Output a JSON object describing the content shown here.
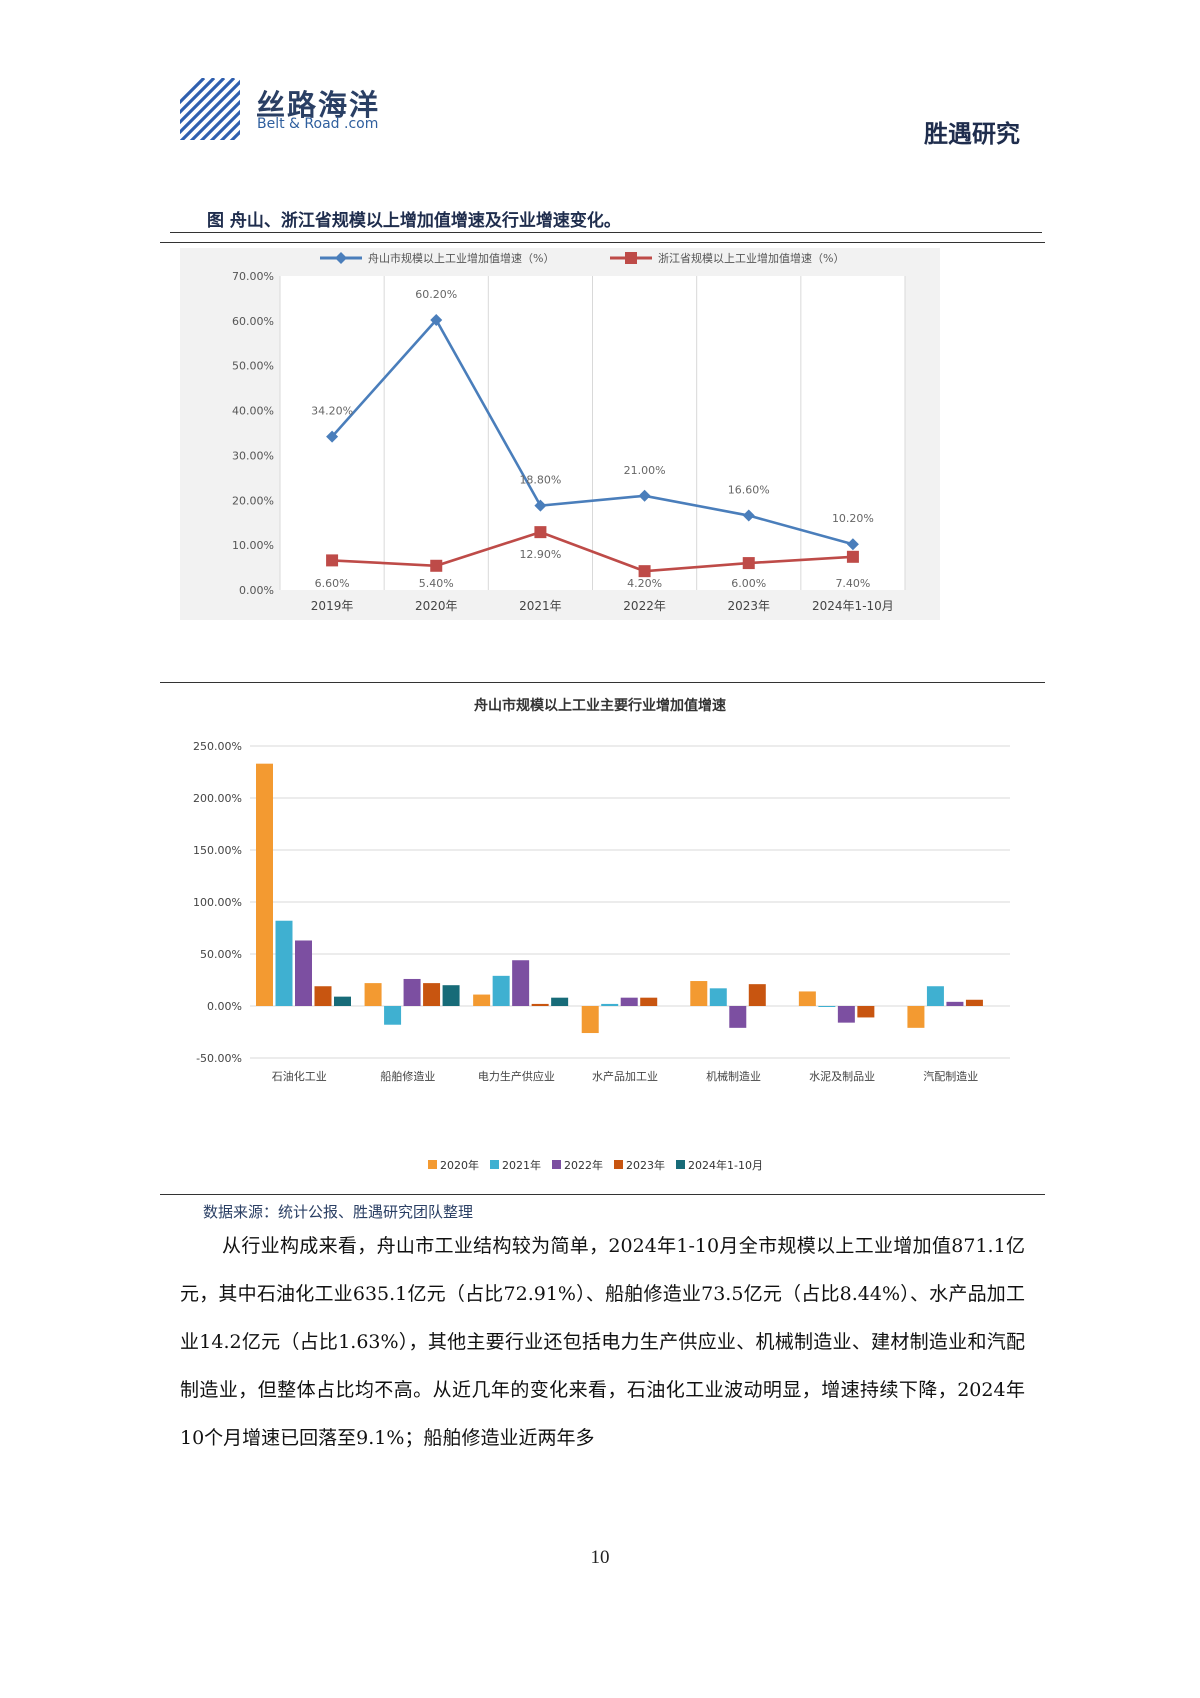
{
  "header": {
    "logo_cn": "丝路海洋",
    "logo_en": "Belt & Road .com",
    "brand": "胜遇研究"
  },
  "figure_title": "图  舟山、浙江省规模以上增加值增速及行业增速变化。",
  "source_note": "数据来源：统计公报、胜遇研究团队整理",
  "paragraph": "从行业构成来看，舟山市工业结构较为简单，2024年1-10月全市规模以上工业增加值871.1亿元，其中石油化工业635.1亿元（占比72.91%）、船舶修造业73.5亿元（占比8.44%）、水产品加工业14.2亿元（占比1.63%），其他主要行业还包括电力生产供应业、机械制造业、建材制造业和汽配制造业，但整体占比均不高。从近几年的变化来看，石油化工业波动明显，增速持续下降，2024年10个月增速已回落至9.1%；船舶修造业近两年多",
  "page_number": "10",
  "chart_data": [
    {
      "type": "line",
      "title": "",
      "categories": [
        "2019年",
        "2020年",
        "2021年",
        "2022年",
        "2023年",
        "2024年1-10月"
      ],
      "yticks": [
        "0.00%",
        "10.00%",
        "20.00%",
        "30.00%",
        "40.00%",
        "50.00%",
        "60.00%",
        "70.00%"
      ],
      "ylim": [
        0,
        70
      ],
      "grid": "vertical",
      "legend_position": "top",
      "series": [
        {
          "name": "舟山市规模以上工业增加值增速（%）",
          "color": "#4a7ebb",
          "marker": "diamond",
          "values": [
            34.2,
            60.2,
            18.8,
            21.0,
            16.6,
            10.2
          ],
          "labels": [
            "34.20%",
            "60.20%",
            "18.80%",
            "21.00%",
            "16.60%",
            "10.20%"
          ]
        },
        {
          "name": "浙江省规模以上工业增加值增速（%）",
          "color": "#be4b48",
          "marker": "square",
          "values": [
            6.6,
            5.4,
            12.9,
            4.2,
            6.0,
            7.4
          ],
          "labels": [
            "6.60%",
            "5.40%",
            "12.90%",
            "4.20%",
            "6.00%",
            "7.40%"
          ]
        }
      ]
    },
    {
      "type": "bar",
      "title": "舟山市规模以上工业主要行业增加值增速",
      "categories": [
        "石油化工业",
        "船舶修造业",
        "电力生产供应业",
        "水产品加工业",
        "机械制造业",
        "水泥及制品业",
        "汽配制造业"
      ],
      "yticks": [
        "-50.00%",
        "0.00%",
        "50.00%",
        "100.00%",
        "150.00%",
        "200.00%",
        "250.00%"
      ],
      "ylim": [
        -50,
        250
      ],
      "grid": "horizontal",
      "legend_position": "bottom",
      "series": [
        {
          "name": "2020年",
          "color": "#f39a31",
          "values": [
            233,
            22,
            11,
            -26,
            24,
            14,
            -21
          ]
        },
        {
          "name": "2021年",
          "color": "#3fb0d1",
          "values": [
            82,
            -18,
            29,
            2,
            17,
            0,
            19
          ]
        },
        {
          "name": "2022年",
          "color": "#7c4fa1",
          "values": [
            63,
            26,
            44,
            8,
            -21,
            -16,
            4
          ]
        },
        {
          "name": "2023年",
          "color": "#c85510",
          "values": [
            19,
            22,
            2,
            8,
            21,
            -11,
            6
          ]
        },
        {
          "name": "2024年1-10月",
          "color": "#176b78",
          "values": [
            9,
            20,
            8,
            null,
            null,
            null,
            null
          ]
        }
      ]
    }
  ]
}
